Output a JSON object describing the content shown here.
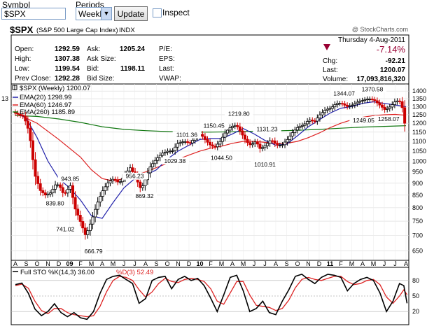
{
  "controls": {
    "symbol_label": "Symbol",
    "symbol_value": "$SPX",
    "periods_label": "Periods",
    "period_value": "Weekly",
    "update_label": "Update",
    "inspect_label": "Inspect"
  },
  "header": {
    "ticker": "$SPX",
    "name": "(S&P 500 Large Cap Index)",
    "exchange": "INDX",
    "copyright": "@ StockCharts.com",
    "date": "Thursday  4-Aug-2011",
    "change_pct": "-7.14%"
  },
  "quote": {
    "open_label": "Open:",
    "open": "1292.59",
    "high_label": "High:",
    "high": "1307.38",
    "low_label": "Low:",
    "low": "1199.54",
    "prevclose_label": "Prev Close:",
    "prevclose": "1292.28",
    "ask_label": "Ask:",
    "ask": "1205.24",
    "asksize_label": "Ask Size:",
    "asksize": "",
    "bid_label": "Bid:",
    "bid": "1198.11",
    "bidsize_label": "Bid Size:",
    "bidsize": "",
    "pe_label": "P/E:",
    "eps_label": "EPS:",
    "last_label": "Last:",
    "vwap_label": "VWAP:",
    "chg_label": "Chg:",
    "chg": "-92.21",
    "last2_label": "Last:",
    "last2": "1200.07",
    "volume_label": "Volume:",
    "volume": "17,093,816,320"
  },
  "colors": {
    "down": "#cc0000",
    "up": "#000000",
    "ema20": "#2222aa",
    "ema60": "#dd2222",
    "ema260": "#117711",
    "change": "#990033"
  },
  "chart_data": [
    {
      "type": "candlestick",
      "legend": [
        {
          "name": "$SPX (Weekly) 1200.07"
        },
        {
          "name": "EMA(20) 1298.99"
        },
        {
          "name": "EMA(60) 1246.97"
        },
        {
          "name": "EMA(260) 1185.89"
        }
      ],
      "y_scale": "log",
      "ylim": [
        630,
        1420
      ],
      "y_ticks": [
        "1400",
        "1350",
        "1300",
        "1250",
        "1200",
        "1150",
        "1100",
        "1050",
        "1000",
        "950",
        "900",
        "850",
        "800",
        "750",
        "700",
        "650"
      ],
      "x_ticks": [
        "A",
        "S",
        "O",
        "N",
        "D",
        "09",
        "F",
        "M",
        "A",
        "M",
        "J",
        "J",
        "A",
        "S",
        "O",
        "N",
        "D",
        "10",
        "F",
        "M",
        "A",
        "M",
        "J",
        "J",
        "A",
        "S",
        "O",
        "N",
        "D",
        "11",
        "F",
        "M",
        "A",
        "M",
        "J",
        "J",
        "A"
      ],
      "x_range_months": [
        "2008-08",
        "2011-08"
      ],
      "left_cut_label": "13",
      "annotations": [
        {
          "label": "839.80",
          "t": 3.65,
          "v": 839.8
        },
        {
          "label": "741.02",
          "t": 4.6,
          "v": 741.02
        },
        {
          "label": "943.85",
          "t": 5.05,
          "v": 943.85
        },
        {
          "label": "666.79",
          "t": 7.2,
          "v": 666.79
        },
        {
          "label": "956.23",
          "t": 11.0,
          "v": 956.23
        },
        {
          "label": "869.32",
          "t": 11.9,
          "v": 869.32
        },
        {
          "label": "1029.38",
          "t": 14.7,
          "v": 1029.38
        },
        {
          "label": "1101.36",
          "t": 15.8,
          "v": 1101.36
        },
        {
          "label": "1150.45",
          "t": 18.3,
          "v": 1150.45
        },
        {
          "label": "1044.50",
          "t": 19.0,
          "v": 1044.5
        },
        {
          "label": "1219.80",
          "t": 20.6,
          "v": 1219.8
        },
        {
          "label": "1131.23",
          "t": 23.2,
          "v": 1131.23
        },
        {
          "label": "1010.91",
          "t": 23.0,
          "v": 1010.91
        },
        {
          "label": "1344.07",
          "t": 30.3,
          "v": 1344.07
        },
        {
          "label": "1249.05",
          "t": 32.1,
          "v": 1249.05
        },
        {
          "label": "1370.58",
          "t": 32.9,
          "v": 1370.58
        },
        {
          "label": "1258.07",
          "t": 34.4,
          "v": 1258.07
        }
      ],
      "price_path": [
        [
          0,
          1265
        ],
        [
          1,
          1240
        ],
        [
          1.5,
          1150
        ],
        [
          2,
          940
        ],
        [
          2.5,
          870
        ],
        [
          3,
          850
        ],
        [
          3.5,
          860
        ],
        [
          4,
          900
        ],
        [
          4.4,
          880
        ],
        [
          4.7,
          850
        ],
        [
          5.3,
          890
        ],
        [
          5.7,
          800
        ],
        [
          6.2,
          750
        ],
        [
          6.7,
          700
        ],
        [
          7.0,
          725
        ],
        [
          7.4,
          770
        ],
        [
          7.8,
          820
        ],
        [
          8.3,
          870
        ],
        [
          8.8,
          905
        ],
        [
          9.3,
          920
        ],
        [
          9.8,
          900
        ],
        [
          10.3,
          935
        ],
        [
          10.8,
          970
        ],
        [
          11.3,
          930
        ],
        [
          11.7,
          880
        ],
        [
          12.0,
          890
        ],
        [
          12.6,
          970
        ],
        [
          13.2,
          1010
        ],
        [
          13.8,
          1040
        ],
        [
          14.3,
          1050
        ],
        [
          14.7,
          1050
        ],
        [
          15.2,
          1090
        ],
        [
          15.8,
          1100
        ],
        [
          16.3,
          1090
        ],
        [
          16.8,
          1120
        ],
        [
          17.3,
          1140
        ],
        [
          17.7,
          1110
        ],
        [
          18.2,
          1080
        ],
        [
          18.6,
          1070
        ],
        [
          19.1,
          1100
        ],
        [
          19.6,
          1150
        ],
        [
          20.1,
          1180
        ],
        [
          20.6,
          1190
        ],
        [
          21.0,
          1150
        ],
        [
          21.5,
          1100
        ],
        [
          21.9,
          1080
        ],
        [
          22.4,
          1100
        ],
        [
          22.8,
          1060
        ],
        [
          23.3,
          1080
        ],
        [
          23.8,
          1110
        ],
        [
          24.3,
          1080
        ],
        [
          24.8,
          1080
        ],
        [
          25.3,
          1110
        ],
        [
          25.8,
          1150
        ],
        [
          26.3,
          1180
        ],
        [
          26.8,
          1190
        ],
        [
          27.3,
          1220
        ],
        [
          27.8,
          1210
        ],
        [
          28.3,
          1250
        ],
        [
          28.8,
          1280
        ],
        [
          29.3,
          1290
        ],
        [
          29.8,
          1320
        ],
        [
          30.3,
          1320
        ],
        [
          30.8,
          1300
        ],
        [
          31.3,
          1310
        ],
        [
          31.8,
          1330
        ],
        [
          32.3,
          1340
        ],
        [
          32.8,
          1350
        ],
        [
          33.3,
          1340
        ],
        [
          33.8,
          1310
        ],
        [
          34.3,
          1280
        ],
        [
          34.8,
          1300
        ],
        [
          35.2,
          1330
        ],
        [
          35.6,
          1340
        ],
        [
          35.9,
          1290
        ],
        [
          36.1,
          1200
        ]
      ],
      "ema20_path": [
        [
          0,
          1265
        ],
        [
          1,
          1230
        ],
        [
          2,
          1120
        ],
        [
          3,
          1000
        ],
        [
          4,
          920
        ],
        [
          5,
          880
        ],
        [
          6,
          830
        ],
        [
          7,
          770
        ],
        [
          8,
          760
        ],
        [
          9,
          820
        ],
        [
          10,
          880
        ],
        [
          11,
          920
        ],
        [
          12,
          935
        ],
        [
          13,
          960
        ],
        [
          14,
          1010
        ],
        [
          15,
          1050
        ],
        [
          16,
          1080
        ],
        [
          17,
          1110
        ],
        [
          18,
          1115
        ],
        [
          19,
          1115
        ],
        [
          20,
          1140
        ],
        [
          21,
          1170
        ],
        [
          22,
          1140
        ],
        [
          23,
          1105
        ],
        [
          24,
          1080
        ],
        [
          25,
          1085
        ],
        [
          26,
          1130
        ],
        [
          27,
          1180
        ],
        [
          28,
          1220
        ],
        [
          29,
          1260
        ],
        [
          30,
          1290
        ],
        [
          31,
          1300
        ],
        [
          32,
          1320
        ],
        [
          33,
          1330
        ],
        [
          34,
          1320
        ],
        [
          35,
          1310
        ],
        [
          36,
          1298.99
        ]
      ],
      "ema60_path": [
        [
          0,
          1260
        ],
        [
          2,
          1200
        ],
        [
          4,
          1110
        ],
        [
          6,
          1020
        ],
        [
          7,
          960
        ],
        [
          8,
          920
        ],
        [
          9,
          910
        ],
        [
          10,
          920
        ],
        [
          11,
          935
        ],
        [
          12,
          950
        ],
        [
          13,
          970
        ],
        [
          14,
          990
        ],
        [
          15,
          1010
        ],
        [
          16,
          1030
        ],
        [
          17,
          1050
        ],
        [
          18,
          1065
        ],
        [
          19,
          1075
        ],
        [
          20,
          1090
        ],
        [
          21,
          1100
        ],
        [
          22,
          1100
        ],
        [
          23,
          1095
        ],
        [
          24,
          1090
        ],
        [
          25,
          1090
        ],
        [
          26,
          1100
        ],
        [
          27,
          1120
        ],
        [
          28,
          1145
        ],
        [
          29,
          1175
        ],
        [
          30,
          1200
        ],
        [
          31,
          1220
        ],
        [
          32,
          1235
        ],
        [
          33,
          1245
        ],
        [
          34,
          1250
        ],
        [
          35,
          1252
        ],
        [
          36,
          1246.97
        ]
      ],
      "ema260_path": [
        [
          0,
          1245
        ],
        [
          2,
          1240
        ],
        [
          4,
          1225
        ],
        [
          6,
          1205
        ],
        [
          8,
          1180
        ],
        [
          10,
          1165
        ],
        [
          12,
          1158
        ],
        [
          14,
          1153
        ],
        [
          16,
          1150
        ],
        [
          18,
          1150
        ],
        [
          20,
          1152
        ],
        [
          22,
          1155
        ],
        [
          24,
          1157
        ],
        [
          26,
          1160
        ],
        [
          28,
          1165
        ],
        [
          30,
          1172
        ],
        [
          32,
          1178
        ],
        [
          34,
          1182
        ],
        [
          36,
          1185.89
        ]
      ]
    },
    {
      "type": "line",
      "legend": [
        {
          "name": "Full STO %K(14,3) 36.00"
        },
        {
          "name": "%D(3) 52.49"
        }
      ],
      "ylim": [
        0,
        100
      ],
      "y_ticks": [
        "80",
        "50",
        "20"
      ],
      "k_path": [
        [
          0,
          72
        ],
        [
          0.6,
          75
        ],
        [
          1.2,
          55
        ],
        [
          1.8,
          25
        ],
        [
          2.4,
          12
        ],
        [
          3.0,
          20
        ],
        [
          3.6,
          35
        ],
        [
          4.2,
          18
        ],
        [
          4.8,
          10
        ],
        [
          5.4,
          18
        ],
        [
          6.0,
          8
        ],
        [
          6.6,
          5
        ],
        [
          7.2,
          20
        ],
        [
          7.8,
          55
        ],
        [
          8.4,
          82
        ],
        [
          9.0,
          88
        ],
        [
          9.6,
          90
        ],
        [
          10.2,
          82
        ],
        [
          10.8,
          74
        ],
        [
          11.4,
          36
        ],
        [
          12.0,
          45
        ],
        [
          12.6,
          80
        ],
        [
          13.2,
          86
        ],
        [
          13.8,
          88
        ],
        [
          14.4,
          64
        ],
        [
          15.0,
          82
        ],
        [
          15.6,
          88
        ],
        [
          16.2,
          80
        ],
        [
          16.8,
          84
        ],
        [
          17.4,
          70
        ],
        [
          18.0,
          46
        ],
        [
          18.6,
          20
        ],
        [
          19.2,
          52
        ],
        [
          19.8,
          86
        ],
        [
          20.4,
          90
        ],
        [
          21.0,
          60
        ],
        [
          21.6,
          20
        ],
        [
          22.2,
          26
        ],
        [
          22.8,
          40
        ],
        [
          23.4,
          18
        ],
        [
          24.0,
          14
        ],
        [
          24.6,
          40
        ],
        [
          25.2,
          62
        ],
        [
          25.8,
          88
        ],
        [
          26.4,
          92
        ],
        [
          27.0,
          82
        ],
        [
          27.6,
          74
        ],
        [
          28.2,
          86
        ],
        [
          28.8,
          92
        ],
        [
          29.4,
          90
        ],
        [
          30.0,
          86
        ],
        [
          30.6,
          60
        ],
        [
          31.2,
          74
        ],
        [
          31.8,
          82
        ],
        [
          32.4,
          86
        ],
        [
          33.0,
          80
        ],
        [
          33.6,
          56
        ],
        [
          34.2,
          20
        ],
        [
          34.8,
          40
        ],
        [
          35.4,
          74
        ],
        [
          35.8,
          70
        ],
        [
          36.1,
          36
        ]
      ],
      "d_path": [
        [
          0,
          70
        ],
        [
          0.6,
          73
        ],
        [
          1.2,
          65
        ],
        [
          1.8,
          40
        ],
        [
          2.4,
          22
        ],
        [
          3.0,
          16
        ],
        [
          3.6,
          26
        ],
        [
          4.2,
          26
        ],
        [
          4.8,
          18
        ],
        [
          5.4,
          14
        ],
        [
          6.0,
          12
        ],
        [
          6.6,
          10
        ],
        [
          7.2,
          12
        ],
        [
          7.8,
          30
        ],
        [
          8.4,
          58
        ],
        [
          9.0,
          80
        ],
        [
          9.6,
          88
        ],
        [
          10.2,
          86
        ],
        [
          10.8,
          80
        ],
        [
          11.4,
          62
        ],
        [
          12.0,
          48
        ],
        [
          12.6,
          58
        ],
        [
          13.2,
          74
        ],
        [
          13.8,
          84
        ],
        [
          14.4,
          78
        ],
        [
          15.0,
          76
        ],
        [
          15.6,
          82
        ],
        [
          16.2,
          84
        ],
        [
          16.8,
          82
        ],
        [
          17.4,
          78
        ],
        [
          18.0,
          64
        ],
        [
          18.6,
          40
        ],
        [
          19.2,
          34
        ],
        [
          19.8,
          56
        ],
        [
          20.4,
          78
        ],
        [
          21.0,
          78
        ],
        [
          21.6,
          52
        ],
        [
          22.2,
          32
        ],
        [
          22.8,
          30
        ],
        [
          23.4,
          28
        ],
        [
          24.0,
          22
        ],
        [
          24.6,
          26
        ],
        [
          25.2,
          42
        ],
        [
          25.8,
          66
        ],
        [
          26.4,
          82
        ],
        [
          27.0,
          86
        ],
        [
          27.6,
          82
        ],
        [
          28.2,
          80
        ],
        [
          28.8,
          84
        ],
        [
          29.4,
          88
        ],
        [
          30.0,
          88
        ],
        [
          30.6,
          78
        ],
        [
          31.2,
          72
        ],
        [
          31.8,
          74
        ],
        [
          32.4,
          80
        ],
        [
          33.0,
          82
        ],
        [
          33.6,
          72
        ],
        [
          34.2,
          48
        ],
        [
          34.8,
          36
        ],
        [
          35.4,
          50
        ],
        [
          35.8,
          62
        ],
        [
          36.1,
          52.49
        ]
      ]
    }
  ]
}
